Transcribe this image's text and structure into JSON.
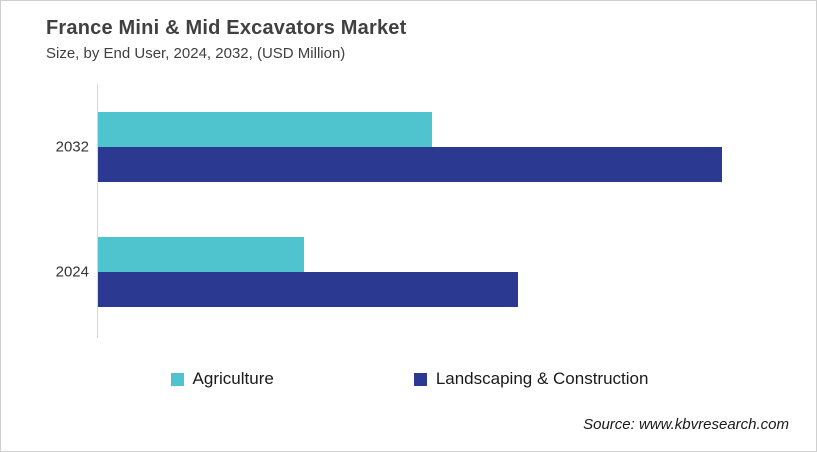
{
  "page": {
    "title": "France Mini & Mid Excavators Market",
    "subtitle": "Size, by End User, 2024, 2032, (USD Million)",
    "source": "Source: www.kbvresearch.com"
  },
  "colors": {
    "agriculture": "#4FC3CE",
    "landscaping_construction": "#2B3990",
    "axis_line": "#D9D9D9",
    "title_text": "#404040",
    "frame_border": "#CFCFCF"
  },
  "chart_data": {
    "type": "bar",
    "orientation": "horizontal",
    "title": "France Mini & Mid Excavators Market",
    "subtitle": "Size, by End User, 2024, 2032, (USD Million)",
    "units_label": "USD Million",
    "categories": [
      "2032",
      "2024"
    ],
    "series": [
      {
        "name": "Agriculture",
        "color": "#4FC3CE",
        "values": [
          334,
          206
        ]
      },
      {
        "name": "Landscaping & Construction",
        "color": "#2B3990",
        "values": [
          625,
          421
        ]
      }
    ],
    "value_axis": {
      "visible": false,
      "xlim": [
        0,
        700
      ]
    },
    "grid": false,
    "legend_position": "bottom"
  }
}
